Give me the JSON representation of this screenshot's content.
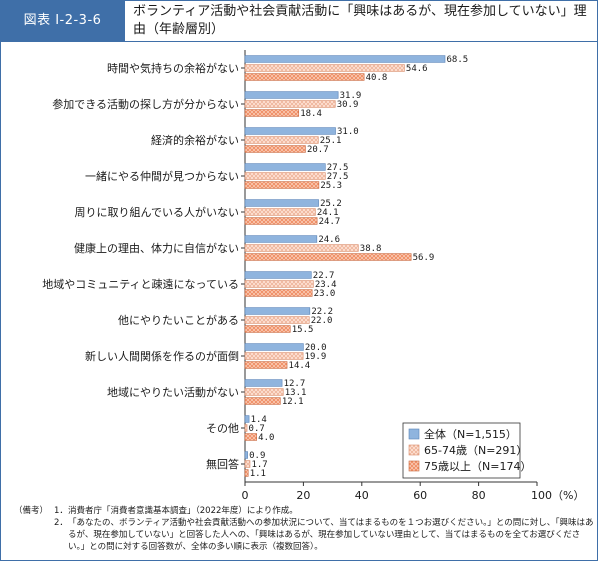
{
  "header": {
    "fig_label": "図表 I-2-3-6",
    "title": "ボランティア活動や社会貢献活動に「興味はあるが、現在参加していない」理由（年齢層別）"
  },
  "colors": {
    "header_blue": "#3f6fa8",
    "series_all": "#8fb4de",
    "series_65_74": "#fde0d2",
    "series_75plus": "#ee8a60"
  },
  "chart_data": {
    "type": "bar",
    "orientation": "horizontal",
    "categories": [
      "時間や気持ちの余裕がない",
      "参加できる活動の探し方が分からない",
      "経済的余裕がない",
      "一緒にやる仲間が見つからない",
      "周りに取り組んでいる人がいない",
      "健康上の理由、体力に自信がない",
      "地域やコミュニティと疎遠になっている",
      "他にやりたいことがある",
      "新しい人間関係を作るのが面倒",
      "地域にやりたい活動がない",
      "その他",
      "無回答"
    ],
    "series": [
      {
        "name": "全体（N=1,515）",
        "values": [
          68.5,
          31.9,
          31.0,
          27.5,
          25.2,
          24.6,
          22.7,
          22.2,
          20.0,
          12.7,
          1.4,
          0.9
        ]
      },
      {
        "name": "65-74歳（N=291）",
        "values": [
          54.6,
          30.9,
          25.1,
          27.5,
          24.1,
          38.8,
          23.4,
          22.0,
          19.9,
          13.1,
          0.7,
          1.7
        ]
      },
      {
        "name": "75歳以上（N=174）",
        "values": [
          40.8,
          18.4,
          20.7,
          25.3,
          24.7,
          56.9,
          23.0,
          15.5,
          14.4,
          12.1,
          4.0,
          1.1
        ]
      }
    ],
    "xlim": [
      0,
      100
    ],
    "xticks": [
      "0",
      "20",
      "40",
      "60",
      "80",
      "100（%）"
    ],
    "legend_position": "bottom-right"
  },
  "notes": {
    "label": "（備考）",
    "items": [
      {
        "num": "1．",
        "text": "消費者庁「消費者意識基本調査」（2022年度）により作成。"
      },
      {
        "num": "2．",
        "text": "「あなたの、ボランティア活動や社会貢献活動への参加状況について、当てはまるものを１つお選びください。」との問に対し、「興味はあるが、現在参加していない」と回答した人への、「興味はあるが、現在参加していない理由として、当てはまるものを全てお選びください。」との問に対する回答数が、全体の多い順に表示（複数回答）。"
      }
    ]
  }
}
